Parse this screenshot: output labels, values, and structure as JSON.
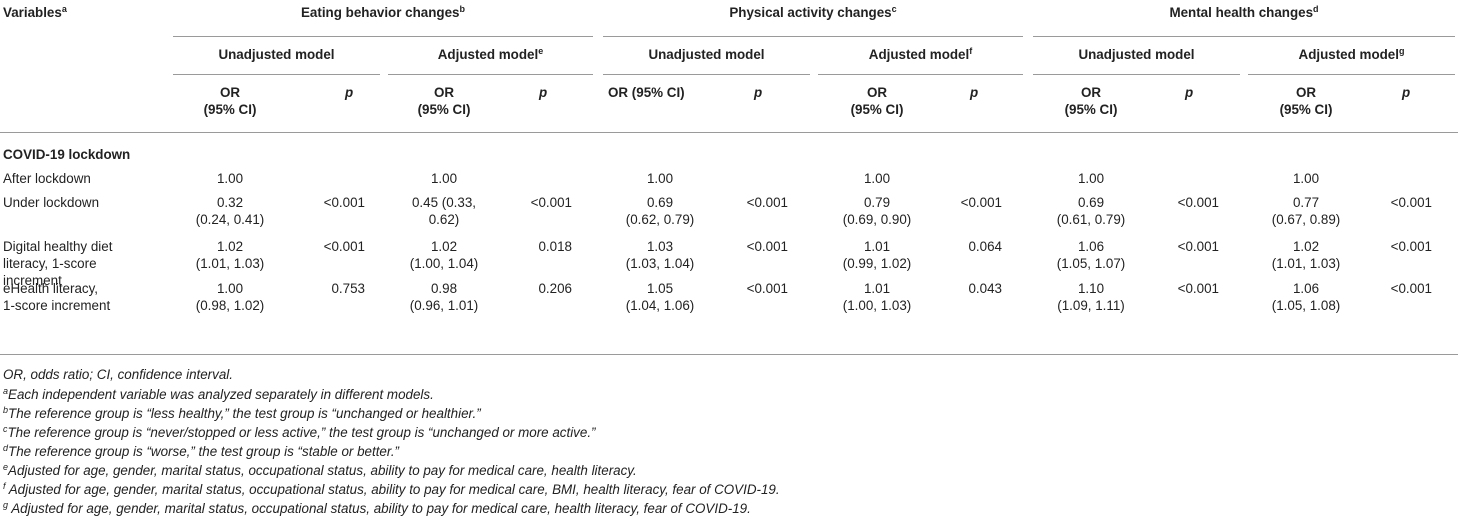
{
  "header": {
    "variables": "Variables",
    "variables_sup": "a",
    "groups": [
      {
        "label": "Eating behavior changes",
        "sup": "b"
      },
      {
        "label": "Physical activity changes",
        "sup": "c"
      },
      {
        "label": "Mental health changes",
        "sup": "d"
      }
    ],
    "models": [
      {
        "label": "Unadjusted model",
        "sup": ""
      },
      {
        "label": "Adjusted model",
        "sup": "e"
      },
      {
        "label": "Unadjusted model",
        "sup": ""
      },
      {
        "label": "Adjusted model",
        "sup": "f"
      },
      {
        "label": "Unadjusted model",
        "sup": ""
      },
      {
        "label": "Adjusted model",
        "sup": "g"
      }
    ],
    "or_label_2line": [
      "OR",
      "(95% CI)"
    ],
    "or_label_1line": "OR (95% CI)",
    "p_label": "p"
  },
  "section_title": "COVID-19 lockdown",
  "rows": [
    {
      "label": [
        "After lockdown"
      ],
      "cells": [
        [
          "1.00"
        ],
        [],
        [
          "1.00"
        ],
        [],
        [
          "1.00"
        ],
        [],
        [
          "1.00"
        ],
        [],
        [
          "1.00"
        ],
        [],
        [
          "1.00"
        ],
        []
      ]
    },
    {
      "label": [
        "Under lockdown"
      ],
      "cells": [
        [
          "0.32",
          "(0.24, 0.41)"
        ],
        [
          "<0.001"
        ],
        [
          "0.45 (0.33,",
          "0.62)"
        ],
        [
          "<0.001"
        ],
        [
          "0.69",
          "(0.62, 0.79)"
        ],
        [
          "<0.001"
        ],
        [
          "0.79",
          "(0.69, 0.90)"
        ],
        [
          "<0.001"
        ],
        [
          "0.69",
          "(0.61, 0.79)"
        ],
        [
          "<0.001"
        ],
        [
          "0.77",
          "(0.67, 0.89)"
        ],
        [
          "<0.001"
        ]
      ]
    },
    {
      "label": [
        "Digital healthy diet",
        "literacy, 1-score",
        "increment"
      ],
      "cells": [
        [
          "1.02",
          "(1.01, 1.03)"
        ],
        [
          "<0.001"
        ],
        [
          "1.02",
          "(1.00, 1.04)"
        ],
        [
          "0.018"
        ],
        [
          "1.03",
          "(1.03, 1.04)"
        ],
        [
          "<0.001"
        ],
        [
          "1.01",
          "(0.99, 1.02)"
        ],
        [
          "0.064"
        ],
        [
          "1.06",
          "(1.05, 1.07)"
        ],
        [
          "<0.001"
        ],
        [
          "1.02",
          "(1.01, 1.03)"
        ],
        [
          "<0.001"
        ]
      ]
    },
    {
      "label": [
        "eHealth literacy,",
        "1-score increment"
      ],
      "cells": [
        [
          "1.00",
          "(0.98, 1.02)"
        ],
        [
          "0.753"
        ],
        [
          "0.98",
          "(0.96, 1.01)"
        ],
        [
          "0.206"
        ],
        [
          "1.05",
          "(1.04, 1.06)"
        ],
        [
          "<0.001"
        ],
        [
          "1.01",
          "(1.00, 1.03)"
        ],
        [
          "0.043"
        ],
        [
          "1.10",
          "(1.09, 1.11)"
        ],
        [
          "<0.001"
        ],
        [
          "1.06",
          "(1.05, 1.08)"
        ],
        [
          "<0.001"
        ]
      ]
    }
  ],
  "footnotes": [
    {
      "sup": "",
      "text": "OR, odds ratio; CI, confidence interval."
    },
    {
      "sup": "a",
      "text": "Each independent variable was analyzed separately in different models."
    },
    {
      "sup": "b",
      "text": "The reference group is “less healthy,” the test group is “unchanged or healthier.”"
    },
    {
      "sup": "c",
      "text": "The reference group is “never/stopped or less active,” the test group is “unchanged or more active.”"
    },
    {
      "sup": "d",
      "text": "The reference group is “worse,” the test group is “stable or better.”"
    },
    {
      "sup": "e",
      "text": "Adjusted for age, gender, marital status, occupational status, ability to pay for medical care, health literacy."
    },
    {
      "sup": "f",
      "text": " Adjusted for age, gender, marital status, occupational status, ability to pay for medical care, BMI, health literacy, fear of COVID-19."
    },
    {
      "sup": "g",
      "text": " Adjusted for age, gender, marital status, occupational status, ability to pay for medical care, health literacy, fear of COVID-19."
    }
  ]
}
